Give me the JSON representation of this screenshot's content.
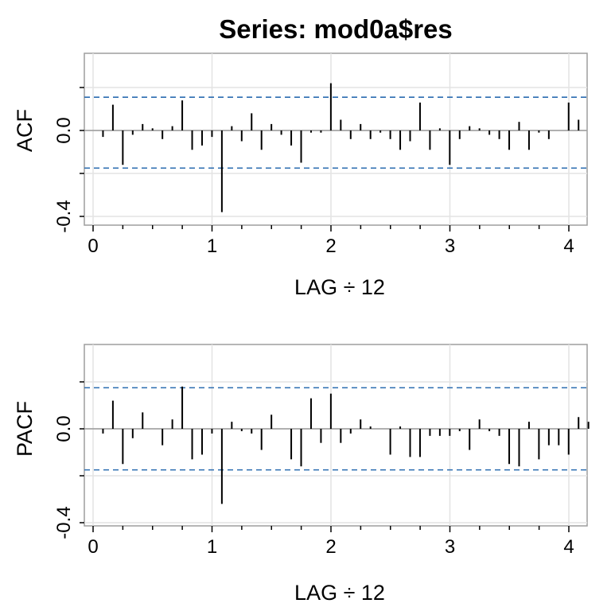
{
  "title": "Series:  mod0a$res",
  "chart_data": [
    {
      "type": "bar",
      "name": "acf-panel",
      "ylabel": "ACF",
      "xlabel": "LAG ÷ 12",
      "xlim": [
        0,
        4
      ],
      "ylim": [
        -0.4,
        0.3
      ],
      "x_ticks": [
        "0",
        "1",
        "2",
        "3",
        "4"
      ],
      "y_ticks": [
        "-0.4",
        "0.0"
      ],
      "grid": true,
      "confidence_bounds": [
        0.155,
        -0.175
      ],
      "lag_step": 0.0833,
      "values": [
        -0.03,
        0.12,
        -0.16,
        -0.02,
        0.03,
        0.01,
        -0.04,
        0.02,
        0.14,
        -0.09,
        -0.07,
        -0.03,
        -0.38,
        0.02,
        -0.05,
        0.08,
        -0.09,
        0.03,
        -0.02,
        -0.07,
        -0.15,
        -0.01,
        -0.01,
        0.22,
        0.05,
        -0.04,
        0.03,
        -0.04,
        -0.01,
        -0.04,
        -0.09,
        -0.05,
        0.13,
        -0.09,
        0.01,
        -0.16,
        -0.04,
        0.02,
        0.01,
        -0.02,
        -0.04,
        -0.09,
        0.04,
        -0.09,
        -0.01,
        -0.04,
        0.0,
        0.13,
        0.05
      ]
    },
    {
      "type": "bar",
      "name": "pacf-panel",
      "ylabel": "PACF",
      "xlabel": "LAG ÷ 12",
      "xlim": [
        0,
        4
      ],
      "ylim": [
        -0.4,
        0.2
      ],
      "x_ticks": [
        "0",
        "1",
        "2",
        "3",
        "4"
      ],
      "y_ticks": [
        "-0.4",
        "0.0"
      ],
      "grid": true,
      "confidence_bounds": [
        0.175,
        -0.175
      ],
      "lag_step": 0.0833,
      "values": [
        -0.02,
        0.12,
        -0.15,
        -0.04,
        0.07,
        0.0,
        -0.07,
        0.04,
        0.18,
        -0.13,
        -0.11,
        -0.02,
        -0.32,
        0.03,
        -0.01,
        -0.02,
        -0.09,
        0.06,
        0.0,
        -0.13,
        -0.16,
        0.13,
        -0.06,
        0.15,
        -0.06,
        -0.02,
        0.04,
        0.01,
        0.0,
        -0.11,
        0.01,
        -0.12,
        -0.12,
        -0.03,
        -0.03,
        -0.03,
        -0.01,
        -0.09,
        0.04,
        -0.01,
        -0.03,
        -0.15,
        -0.16,
        0.03,
        -0.13,
        -0.07,
        -0.07,
        -0.11,
        0.05,
        0.03
      ]
    }
  ]
}
